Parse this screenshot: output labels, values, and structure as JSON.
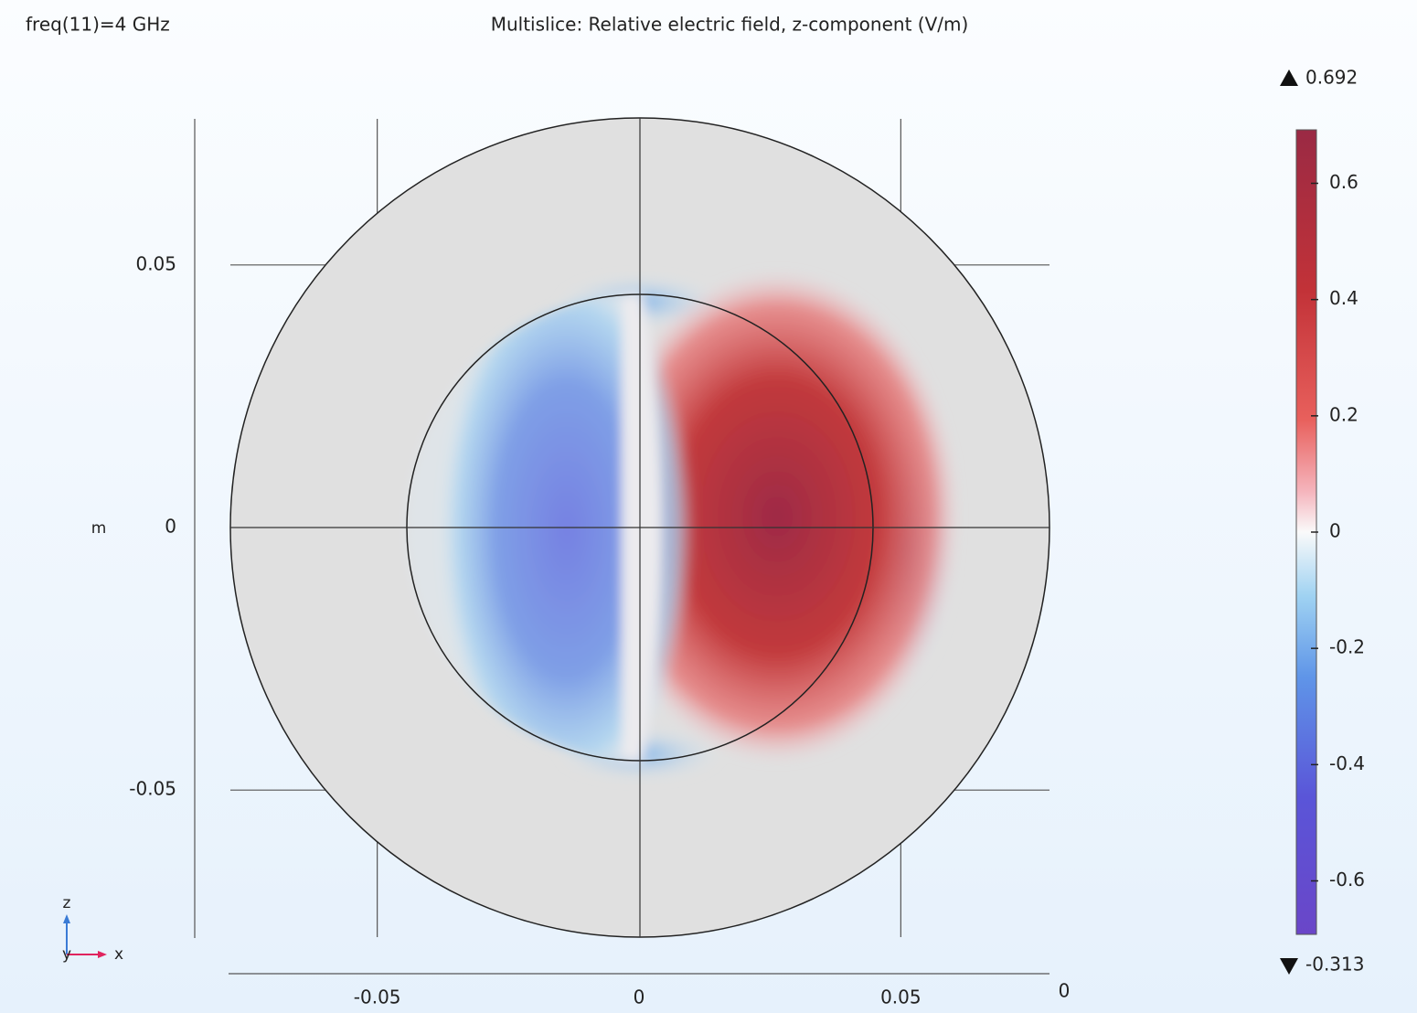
{
  "chart_data": {
    "type": "field",
    "title": "Multislice: Relative electric field, z-component (V/m)",
    "annotation": "freq(11)=4 GHz",
    "ylabel": "m",
    "xlim": [
      -0.0784,
      0.0784
    ],
    "ylim": [
      -0.078,
      0.078
    ],
    "xticks": [
      -0.05,
      0,
      0.05
    ],
    "yticks": [
      0.05,
      0,
      -0.05
    ],
    "zticks": [
      0
    ],
    "triad": [
      "z",
      "y",
      "x"
    ],
    "colorbar": {
      "lim": [
        -0.692,
        0.692
      ],
      "ticks": [
        0.6,
        0.4,
        0.2,
        0,
        -0.2,
        -0.4,
        -0.6
      ],
      "max": 0.692,
      "min": -0.313
    }
  }
}
